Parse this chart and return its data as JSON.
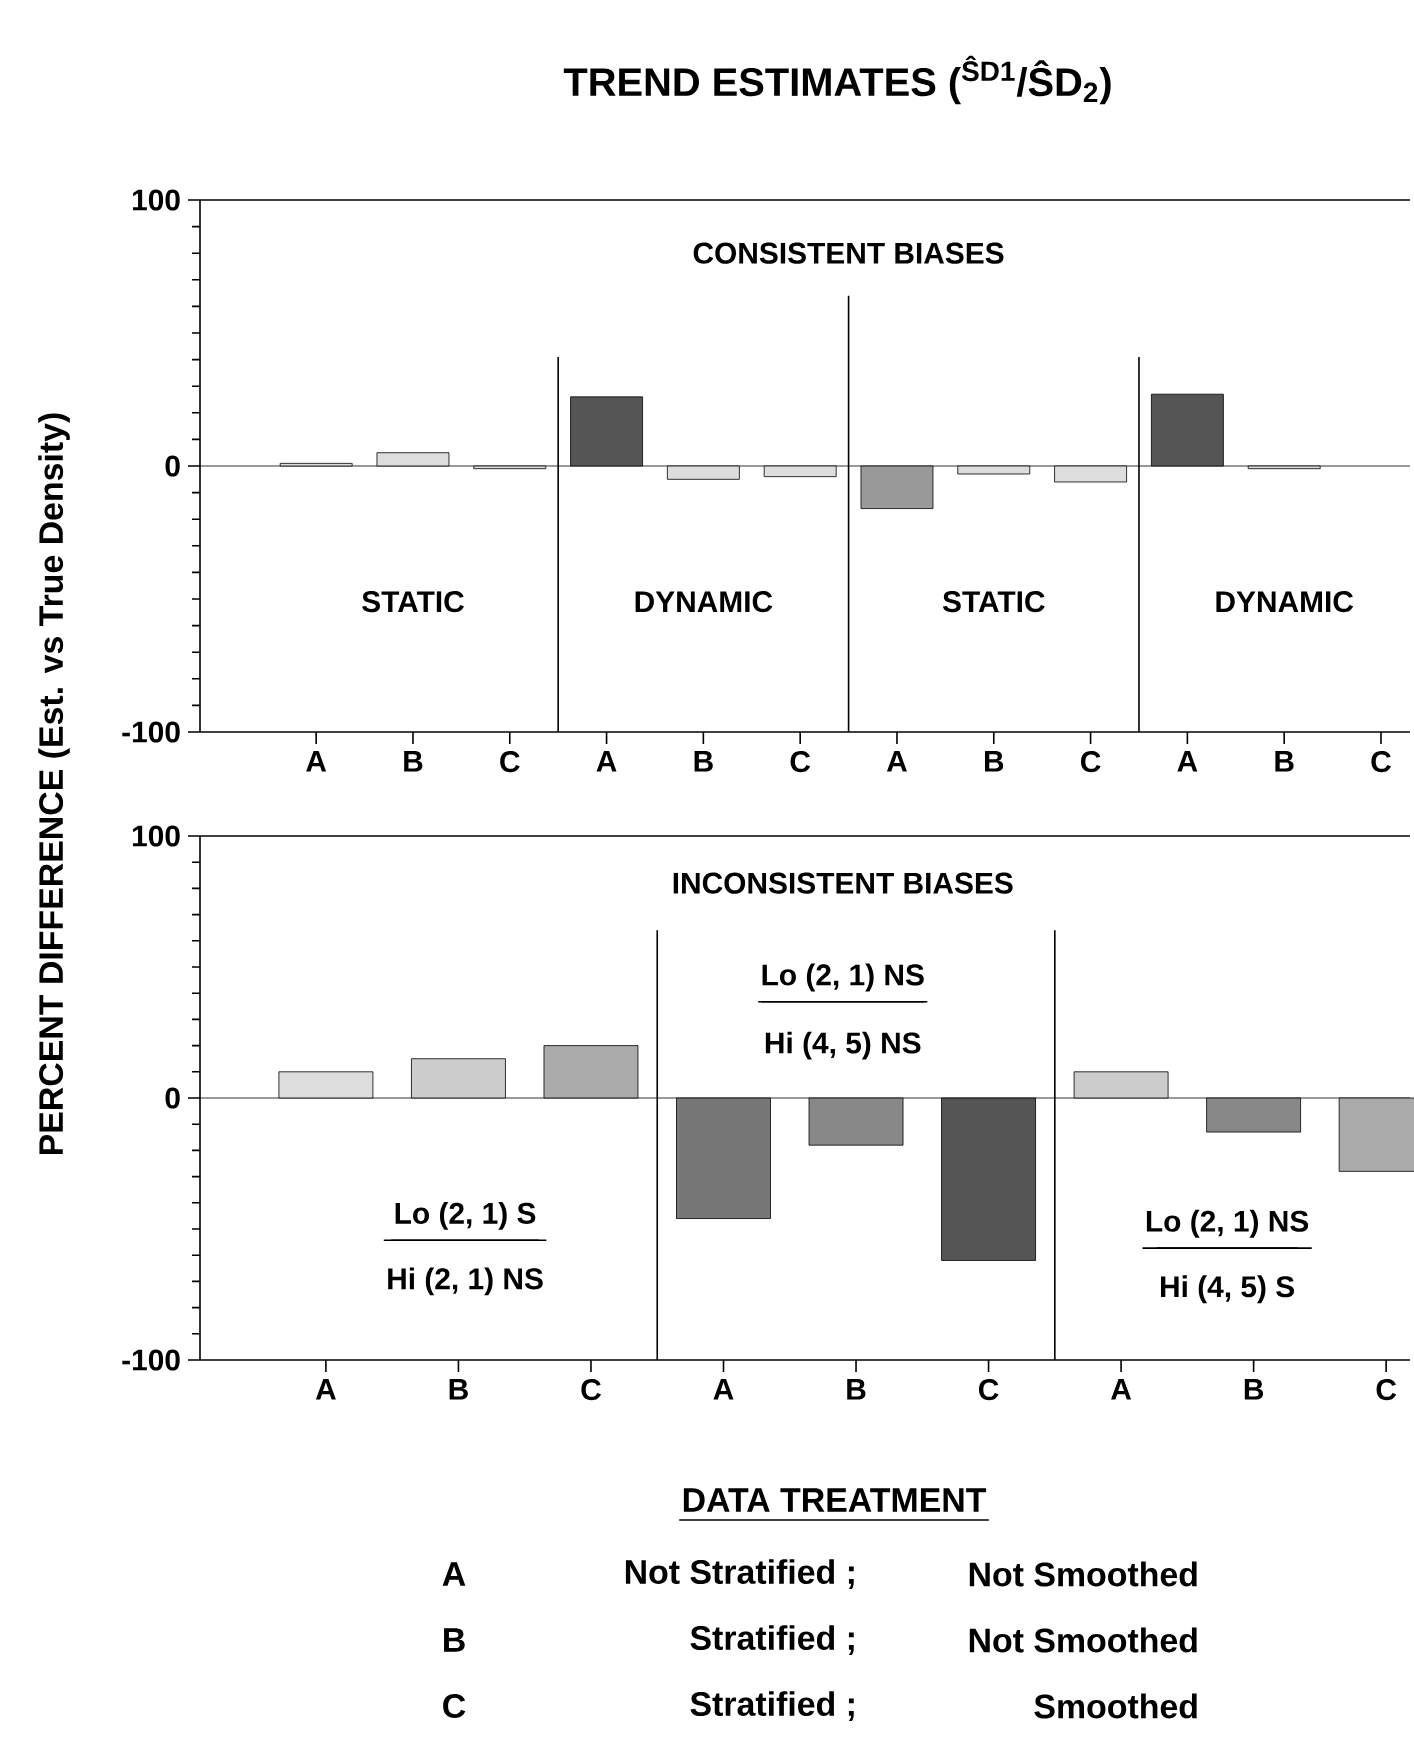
{
  "chart_data": [
    {
      "type": "bar",
      "title": "TREND ESTIMATES ($^{ŜD1}$/ŜD$_{2}$)",
      "ylabel": "PERCENT DIFFERENCE  (Est.  vs True Density)",
      "categories": [
        "A",
        "B",
        "C",
        "A",
        "B",
        "C",
        "A",
        "B",
        "C",
        "A",
        "B",
        "C"
      ],
      "values": [
        1,
        5,
        -1,
        26,
        -5,
        -4,
        -16,
        -3,
        -6,
        27,
        -1,
        null
      ],
      "colors": [
        "#dddddd",
        "#dddddd",
        "#dddddd",
        "#555555",
        "#dddddd",
        "#dddddd",
        "#999999",
        "#dddddd",
        "#dddddd",
        "#555555",
        "#dddddd",
        "#dddddd"
      ],
      "ylim": [
        -100,
        100
      ],
      "yticks": [
        -100,
        0,
        100
      ],
      "annotations": [
        "CONSISTENT BIASES",
        "STATIC",
        "DYNAMIC",
        "STATIC",
        "DYNAMIC"
      ]
    },
    {
      "type": "bar",
      "xlabel": "DATA TREATMENT",
      "categories": [
        "A",
        "B",
        "C",
        "A",
        "B",
        "C",
        "A",
        "B",
        "C"
      ],
      "values": [
        10,
        15,
        20,
        -46,
        -18,
        -62,
        10,
        -13,
        -28
      ],
      "colors": [
        "#dddddd",
        "#cccccc",
        "#aaaaaa",
        "#777777",
        "#888888",
        "#555555",
        "#cccccc",
        "#888888",
        "#aaaaaa"
      ],
      "ylim": [
        -100,
        100
      ],
      "yticks": [
        -100,
        0,
        100
      ],
      "annotations": [
        "INCONSISTENT BIASES",
        "Lo (2, 1) S",
        "Hi (2, 1) NS",
        "Lo (2, 1) NS",
        "Hi (4, 5) NS",
        "Lo (2, 1) NS",
        "Hi (4, 5) S",
        "A",
        "Not Stratified ;",
        "Not Smoothed",
        "B",
        "Stratified ;",
        "Not Smoothed",
        "C",
        "Stratified ;",
        "Smoothed"
      ]
    }
  ]
}
